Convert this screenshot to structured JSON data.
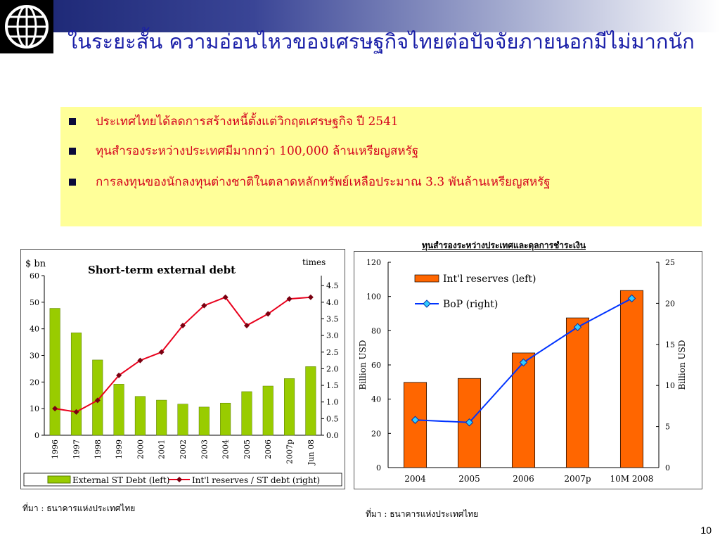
{
  "slide": {
    "title": "ในระยะสั้น ความอ่อนไหวของเศรษฐกิจไทยต่อปัจจัยภายนอกมีไม่มากนัก",
    "bullets": [
      "ประเทศไทยได้ลดการสร้างหนี้ตั้งแต่วิกฤตเศรษฐกิจ ปี 2541",
      "ทุนสำรองระหว่างประเทศมีมากกว่า 100,000 ล้านเหรียญสหรัฐ",
      "การลงทุนของนักลงทุนต่างชาติในตลาดหลักทรัพย์เหลือประมาณ 3.3 พันล้านเหรียญสหรัฐ"
    ],
    "right_chart_heading": "ทุนสำรองระหว่างประเทศและดุลการชำระเงิน",
    "source_left": "ที่มา : ธนาคารแห่งประเทศไทย",
    "source_right": "ที่มา : ธนาคารแห่งประเทศไทย",
    "page_number": "10",
    "colors": {
      "title": "#1a1fa8",
      "bullet_text": "#d4001c",
      "bullet_box": "#ffff99",
      "bar_green": "#99cc00",
      "line_red": "#e8001c",
      "bar_orange": "#ff6600",
      "line_blue": "#0033ff"
    }
  },
  "chart_data": [
    {
      "type": "bar",
      "title": "Short-term external debt",
      "ylabel_left": "$ bn",
      "ylabel_right": "times",
      "categories": [
        "1996",
        "1997",
        "1998",
        "1999",
        "2000",
        "2001",
        "2002",
        "2003",
        "2004",
        "2005",
        "2006",
        "2007p",
        "Jun 08"
      ],
      "left_ticks": [
        "0",
        "10",
        "20",
        "30",
        "40",
        "50",
        "60"
      ],
      "right_ticks": [
        "0.0",
        "0.5",
        "1.0",
        "1.5",
        "2.0",
        "2.5",
        "3.0",
        "3.5",
        "4.0",
        "4.5"
      ],
      "ylim_left": [
        0,
        60
      ],
      "ylim_right": [
        0,
        4.8
      ],
      "series": [
        {
          "name": "External ST Debt (left)",
          "type": "bar",
          "axis": "left",
          "values": [
            47.7,
            38.5,
            28.3,
            19.2,
            14.6,
            13.2,
            11.7,
            10.6,
            12.1,
            16.4,
            18.5,
            21.3,
            25.8
          ]
        },
        {
          "name": "Int'l reserves / ST debt (right)",
          "type": "line",
          "axis": "right",
          "values": [
            0.8,
            0.7,
            1.05,
            1.8,
            2.25,
            2.5,
            3.3,
            3.9,
            4.15,
            3.3,
            3.65,
            4.1,
            4.15
          ]
        }
      ]
    },
    {
      "type": "bar",
      "title": "",
      "ylabel_left": "Billion USD",
      "ylabel_right": "Billion USD",
      "categories": [
        "2004",
        "2005",
        "2006",
        "2007p",
        "10M 2008"
      ],
      "left_ticks": [
        "0",
        "20",
        "40",
        "60",
        "80",
        "100",
        "120"
      ],
      "right_ticks": [
        "0",
        "5",
        "10",
        "15",
        "20",
        "25"
      ],
      "ylim_left": [
        0,
        120
      ],
      "ylim_right": [
        0,
        25
      ],
      "series": [
        {
          "name": "Int'l reserves (left)",
          "type": "bar",
          "axis": "left",
          "values": [
            49.8,
            52.1,
            67.0,
            87.5,
            103.5
          ]
        },
        {
          "name": "BoP (right)",
          "type": "line",
          "axis": "right",
          "values": [
            5.8,
            5.5,
            12.8,
            17.1,
            20.6
          ]
        }
      ]
    }
  ]
}
